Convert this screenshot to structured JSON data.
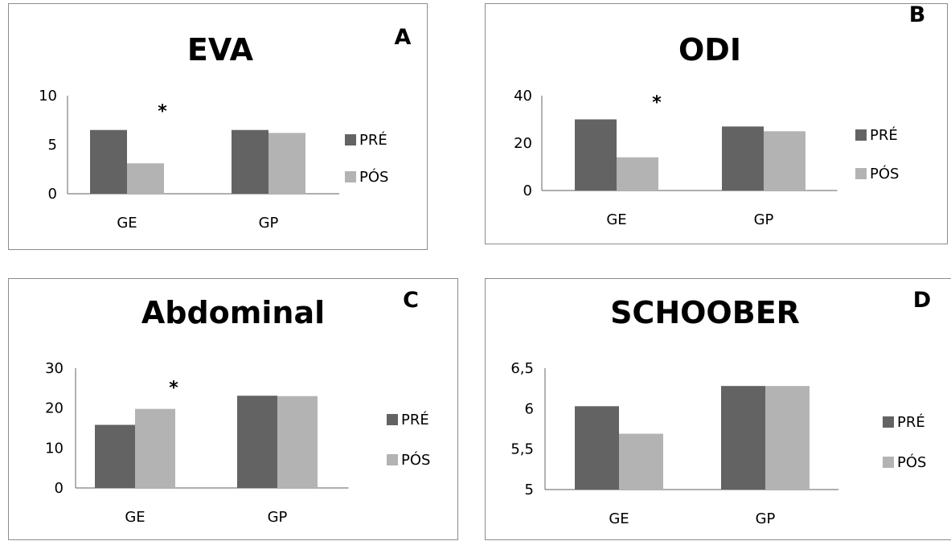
{
  "chart_data": [
    {
      "type": "bar",
      "panel_letter": "A",
      "title": "EVA",
      "categories": [
        "GE",
        "GP"
      ],
      "series": [
        {
          "name": "PRÉ",
          "values": [
            6.5,
            6.5
          ]
        },
        {
          "name": "PÓS",
          "values": [
            3.1,
            6.2
          ]
        }
      ],
      "ylim": [
        0,
        10
      ],
      "yticks": [
        0,
        5,
        10
      ],
      "ytick_labels": [
        "0",
        "5",
        "10"
      ],
      "annotations": [
        {
          "text": "*",
          "category": "GE"
        }
      ],
      "legend_position": "right",
      "grid": false,
      "colors": [
        "#636363",
        "#b3b3b3"
      ]
    },
    {
      "type": "bar",
      "panel_letter": "B",
      "title": "ODI",
      "categories": [
        "GE",
        "GP"
      ],
      "series": [
        {
          "name": "PRÉ",
          "values": [
            30,
            27
          ]
        },
        {
          "name": "PÓS",
          "values": [
            14,
            25
          ]
        }
      ],
      "ylim": [
        0,
        40
      ],
      "yticks": [
        0,
        20,
        40
      ],
      "ytick_labels": [
        "0",
        "20",
        "40"
      ],
      "annotations": [
        {
          "text": "*",
          "category": "GE"
        }
      ],
      "legend_position": "right",
      "grid": false,
      "colors": [
        "#636363",
        "#b3b3b3"
      ]
    },
    {
      "type": "bar",
      "panel_letter": "C",
      "title": "Abdominal",
      "categories": [
        "GE",
        "GP"
      ],
      "series": [
        {
          "name": "PRÉ",
          "values": [
            15.8,
            23.1
          ]
        },
        {
          "name": "PÓS",
          "values": [
            19.8,
            23.0
          ]
        }
      ],
      "ylim": [
        0,
        30
      ],
      "yticks": [
        0,
        10,
        20,
        30
      ],
      "ytick_labels": [
        "0",
        "10",
        "20",
        "30"
      ],
      "annotations": [
        {
          "text": "*",
          "category": "GE"
        }
      ],
      "legend_position": "right",
      "grid": false,
      "colors": [
        "#636363",
        "#b3b3b3"
      ]
    },
    {
      "type": "bar",
      "panel_letter": "D",
      "title": "SCHOOBER",
      "categories": [
        "GE",
        "GP"
      ],
      "series": [
        {
          "name": "PRÉ",
          "values": [
            6.03,
            6.28
          ]
        },
        {
          "name": "PÓS",
          "values": [
            5.69,
            6.28
          ]
        }
      ],
      "ylim": [
        5,
        6.5
      ],
      "yticks": [
        5,
        5.5,
        6,
        6.5
      ],
      "ytick_labels": [
        "5",
        "5,5",
        "6",
        "6,5"
      ],
      "annotations": [],
      "legend_position": "right",
      "grid": false,
      "colors": [
        "#636363",
        "#b3b3b3"
      ]
    }
  ]
}
